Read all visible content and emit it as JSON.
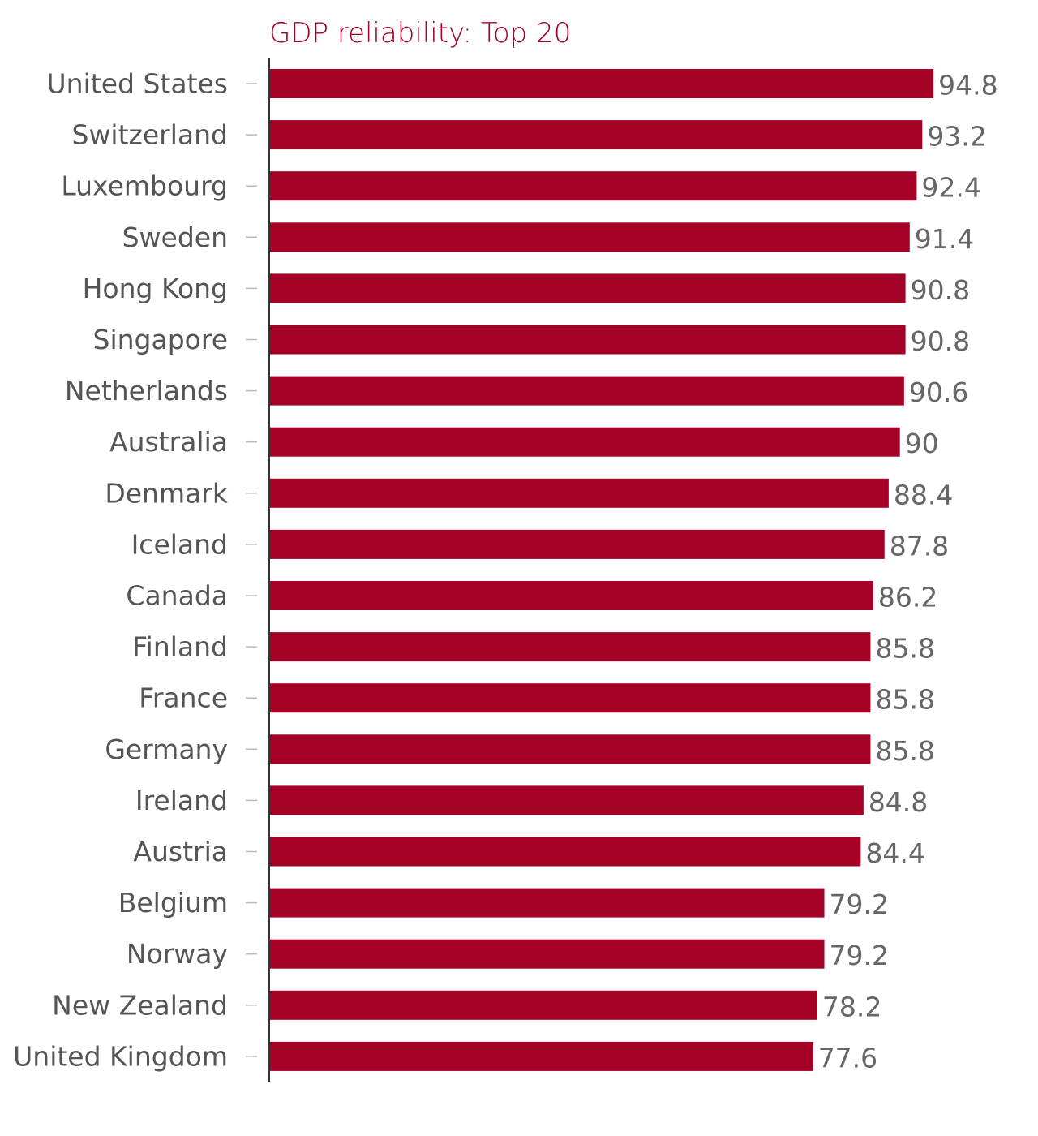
{
  "chart_data": {
    "type": "bar",
    "orientation": "horizontal",
    "title": "GDP reliability: Top 20",
    "xlabel": "",
    "ylabel": "",
    "xlim": [
      0,
      100
    ],
    "grid": false,
    "legend": "none",
    "categories": [
      "United States",
      "Switzerland",
      "Luxembourg",
      "Sweden",
      "Hong Kong",
      "Singapore",
      "Netherlands",
      "Australia",
      "Denmark",
      "Iceland",
      "Canada",
      "Finland",
      "France",
      "Germany",
      "Ireland",
      "Austria",
      "Belgium",
      "Norway",
      "New Zealand",
      "United Kingdom"
    ],
    "values": [
      94.8,
      93.2,
      92.4,
      91.4,
      90.8,
      90.8,
      90.6,
      90,
      88.4,
      87.8,
      86.2,
      85.8,
      85.8,
      85.8,
      84.8,
      84.4,
      79.2,
      79.2,
      78.2,
      77.6
    ],
    "value_labels": [
      "94.8",
      "93.2",
      "92.4",
      "91.4",
      "90.8",
      "90.8",
      "90.6",
      "90",
      "88.4",
      "87.8",
      "86.2",
      "85.8",
      "85.8",
      "85.8",
      "84.8",
      "84.4",
      "79.2",
      "79.2",
      "78.2",
      "77.6"
    ]
  },
  "colors": {
    "bar": "#a50026",
    "title": "#a50026",
    "axis": "#333333",
    "tick": "#bbbbbb",
    "category_text": "#555555",
    "value_text": "#666666"
  }
}
